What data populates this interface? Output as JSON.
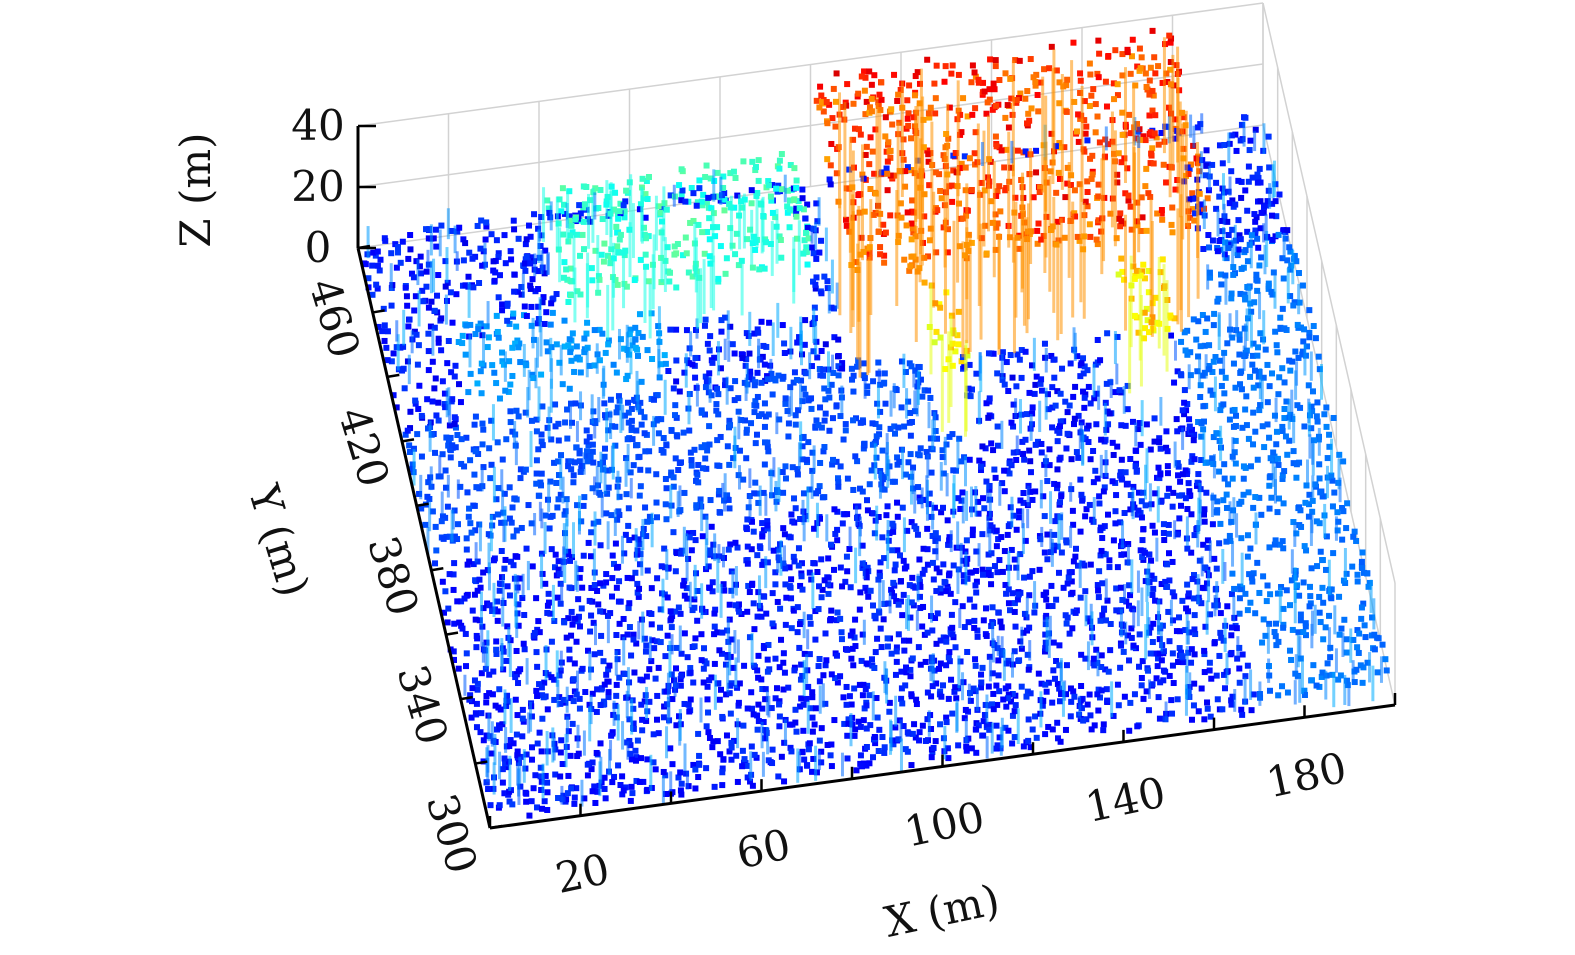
{
  "chart_data": {
    "type": "scatter",
    "title": "",
    "xlabel": "X (m)",
    "ylabel": "Y (m)",
    "zlabel": "Z (m)",
    "xlim": [
      0,
      200
    ],
    "ylim": [
      300,
      480
    ],
    "zlim": [
      0,
      40
    ],
    "xticks": [
      "20",
      "60",
      "100",
      "140",
      "180"
    ],
    "yticks": [
      "300",
      "340",
      "380",
      "420",
      "460"
    ],
    "zticks": [
      "0",
      "20",
      "40"
    ],
    "grid": true,
    "colormap": "jet",
    "regions": [
      {
        "x": [
          0,
          200
        ],
        "y": [
          300,
          380
        ],
        "z": 2
      },
      {
        "x": [
          0,
          120
        ],
        "y": [
          380,
          420
        ],
        "z": 6
      },
      {
        "x": [
          15,
          60
        ],
        "y": [
          420,
          445
        ],
        "z": 10
      },
      {
        "x": [
          40,
          95
        ],
        "y": [
          440,
          475
        ],
        "z": 18
      },
      {
        "x": [
          100,
          180
        ],
        "y": [
          420,
          478
        ],
        "z": 38
      },
      {
        "x": [
          115,
          122
        ],
        "y": [
          395,
          445
        ],
        "z": 30
      },
      {
        "x": [
          158,
          168
        ],
        "y": [
          395,
          445
        ],
        "z": 30
      },
      {
        "x": [
          170,
          200
        ],
        "y": [
          300,
          440
        ],
        "z": 8
      }
    ],
    "colors": {
      "low": "#0010c0",
      "mid": "#00c8ff",
      "high": "#9a0000"
    }
  }
}
